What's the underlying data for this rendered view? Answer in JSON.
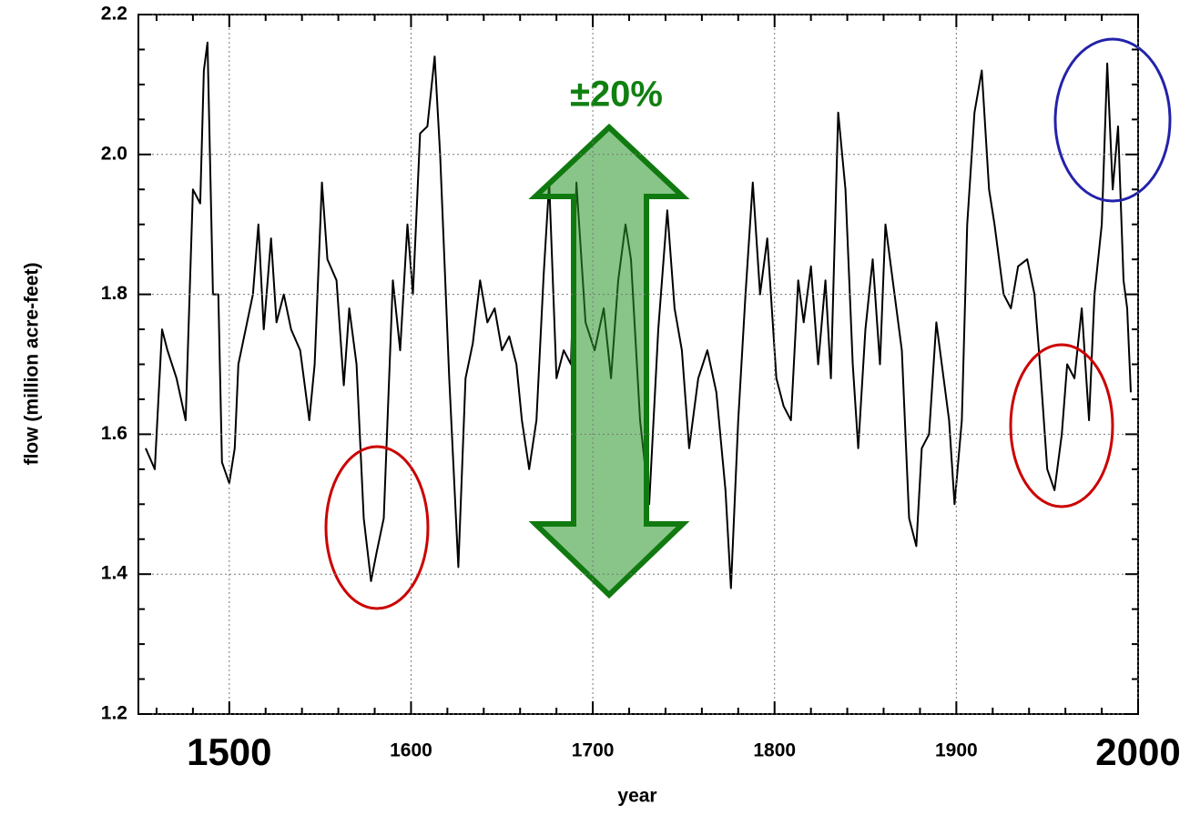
{
  "chart_data": {
    "type": "line",
    "x_label": "year",
    "y_label": "flow  (million acre-feet)",
    "annotation": "±20%",
    "x": [
      1454,
      1459,
      1463,
      1466,
      1471,
      1476,
      1480,
      1484,
      1486,
      1488,
      1491,
      1494,
      1496,
      1500,
      1503,
      1505,
      1509,
      1513,
      1516,
      1519,
      1523,
      1526,
      1530,
      1534,
      1539,
      1544,
      1547,
      1551,
      1554,
      1559,
      1563,
      1566,
      1570,
      1574,
      1578,
      1581,
      1585,
      1590,
      1594,
      1598,
      1601,
      1605,
      1609,
      1613,
      1616,
      1621,
      1626,
      1630,
      1634,
      1638,
      1642,
      1646,
      1650,
      1654,
      1658,
      1661,
      1665,
      1669,
      1673,
      1676,
      1680,
      1684,
      1688,
      1691,
      1696,
      1701,
      1706,
      1710,
      1714,
      1718,
      1721,
      1726,
      1731,
      1736,
      1741,
      1745,
      1749,
      1753,
      1758,
      1763,
      1768,
      1773,
      1776,
      1780,
      1784,
      1788,
      1792,
      1796,
      1801,
      1805,
      1809,
      1813,
      1816,
      1820,
      1824,
      1828,
      1831,
      1835,
      1839,
      1843,
      1846,
      1850,
      1854,
      1858,
      1861,
      1866,
      1870,
      1874,
      1878,
      1881,
      1885,
      1889,
      1893,
      1896,
      1899,
      1903,
      1906,
      1910,
      1914,
      1918,
      1921,
      1926,
      1930,
      1934,
      1939,
      1943,
      1946,
      1950,
      1954,
      1958,
      1961,
      1965,
      1969,
      1973,
      1976,
      1980,
      1983,
      1986,
      1989,
      1992,
      1994,
      1996
    ],
    "series": [
      {
        "color": "#000000",
        "values": [
          1.58,
          1.55,
          1.75,
          1.72,
          1.68,
          1.62,
          1.95,
          1.93,
          2.12,
          2.16,
          1.8,
          1.8,
          1.56,
          1.53,
          1.58,
          1.7,
          1.75,
          1.8,
          1.9,
          1.75,
          1.88,
          1.76,
          1.8,
          1.75,
          1.72,
          1.62,
          1.7,
          1.96,
          1.85,
          1.82,
          1.67,
          1.78,
          1.7,
          1.48,
          1.39,
          1.43,
          1.48,
          1.82,
          1.72,
          1.9,
          1.8,
          2.03,
          2.04,
          2.14,
          2.0,
          1.68,
          1.41,
          1.68,
          1.73,
          1.82,
          1.76,
          1.78,
          1.72,
          1.74,
          1.7,
          1.62,
          1.55,
          1.62,
          1.83,
          1.96,
          1.68,
          1.72,
          1.7,
          1.96,
          1.76,
          1.72,
          1.78,
          1.68,
          1.82,
          1.9,
          1.85,
          1.62,
          1.5,
          1.75,
          1.92,
          1.78,
          1.72,
          1.58,
          1.68,
          1.72,
          1.66,
          1.52,
          1.38,
          1.62,
          1.8,
          1.96,
          1.8,
          1.88,
          1.68,
          1.64,
          1.62,
          1.82,
          1.76,
          1.84,
          1.7,
          1.82,
          1.68,
          2.06,
          1.95,
          1.7,
          1.58,
          1.75,
          1.85,
          1.7,
          1.9,
          1.8,
          1.72,
          1.48,
          1.44,
          1.58,
          1.6,
          1.76,
          1.68,
          1.62,
          1.5,
          1.62,
          1.9,
          2.06,
          2.12,
          1.95,
          1.9,
          1.8,
          1.78,
          1.84,
          1.85,
          1.8,
          1.7,
          1.55,
          1.52,
          1.6,
          1.7,
          1.68,
          1.78,
          1.62,
          1.8,
          1.9,
          2.13,
          1.95,
          2.04,
          1.82,
          1.78,
          1.66
        ]
      }
    ],
    "xlim": [
      1450,
      2000
    ],
    "ylim": [
      1.2,
      2.2
    ],
    "xticks": [
      1500,
      1600,
      1700,
      1800,
      1900,
      2000
    ],
    "yticks": [
      {
        "value": 1.2,
        "label": "1.2"
      },
      {
        "value": 1.4,
        "label": "1.4"
      },
      {
        "value": 1.6,
        "label": "1.6"
      },
      {
        "value": 1.8,
        "label": "1.8"
      },
      {
        "value": 2.0,
        "label": "2.0"
      },
      {
        "value": 2.2,
        "label": "2.2"
      }
    ],
    "xminorticks": [
      1460,
      1480,
      1520,
      1540,
      1560,
      1580,
      1620,
      1640,
      1660,
      1680,
      1720,
      1740,
      1760,
      1780,
      1820,
      1840,
      1860,
      1880,
      1920,
      1940,
      1960,
      1980
    ],
    "yminorticks": [
      1.25,
      1.3,
      1.35,
      1.45,
      1.5,
      1.55,
      1.65,
      1.7,
      1.75,
      1.85,
      1.9,
      1.95,
      2.05,
      2.1,
      2.15
    ],
    "grid": true
  }
}
